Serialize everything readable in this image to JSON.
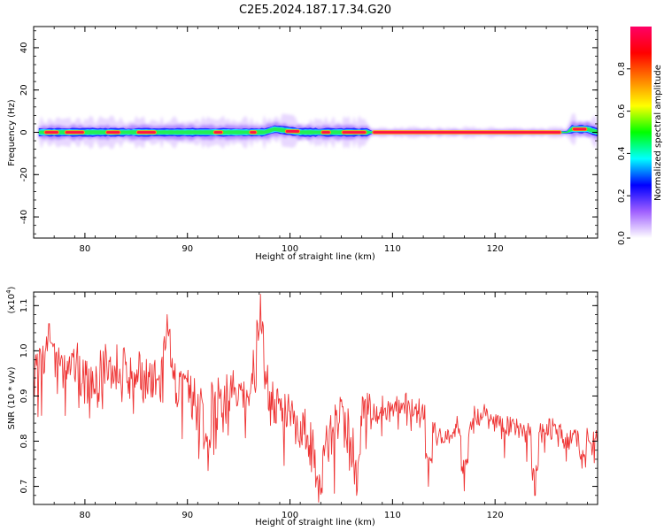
{
  "title": "C2E5.2024.187.17.34.G20",
  "chart_data": [
    {
      "type": "heatmap",
      "xlabel": "Height of straight line (km)",
      "ylabel": "Frequency (Hz)",
      "xlim": [
        75,
        130
      ],
      "ylim": [
        -50,
        50
      ],
      "x_ticks": [
        80,
        90,
        100,
        110,
        120
      ],
      "y_ticks": [
        -40,
        -20,
        0,
        20,
        40
      ],
      "y_tick_labels": [
        "-40",
        "-20",
        "0",
        "20",
        "40"
      ],
      "grid": false,
      "band": {
        "x_range": [
          75.5,
          130
        ],
        "center_frequency": [
          {
            "x": 75.5,
            "f": 0
          },
          {
            "x": 97.5,
            "f": 0
          },
          {
            "x": 98.5,
            "f": 1.5
          },
          {
            "x": 101,
            "f": 0
          },
          {
            "x": 127,
            "f": 0
          },
          {
            "x": 127.5,
            "f": 1.5
          },
          {
            "x": 129,
            "f": 1.5
          },
          {
            "x": 130,
            "f": 0
          }
        ],
        "outer_halfwidth_hz": [
          {
            "x": 75.5,
            "w": 3
          },
          {
            "x": 107.5,
            "w": 3
          },
          {
            "x": 108,
            "w": 1
          },
          {
            "x": 127,
            "w": 1
          },
          {
            "x": 127.5,
            "w": 3
          },
          {
            "x": 130,
            "w": 3
          }
        ],
        "peak_segments": [
          [
            76,
            77.5
          ],
          [
            78,
            80
          ],
          [
            82,
            83.5
          ],
          [
            85,
            87
          ],
          [
            92.5,
            93.5
          ],
          [
            96,
            96.8
          ],
          [
            99.5,
            101
          ],
          [
            103,
            104
          ],
          [
            105,
            107.5
          ],
          [
            108,
            126.5
          ],
          [
            127.5,
            129
          ]
        ]
      },
      "colorbar": {
        "label": "Normalized spectral amplitude",
        "range": [
          0,
          1
        ],
        "ticks": [
          0.0,
          0.2,
          0.4,
          0.6,
          0.8
        ],
        "tick_labels": [
          "0.0",
          "0.2",
          "0.4",
          "0.6",
          "0.8"
        ],
        "colors": [
          "#ffffff",
          "#a060ff",
          "#0000ff",
          "#00ffff",
          "#00ff00",
          "#ffff00",
          "#ff8000",
          "#ff0000",
          "#ff0066"
        ]
      }
    },
    {
      "type": "line",
      "xlabel": "Height of straight line (km)",
      "ylabel": "SNR (10 * v/v)",
      "y_exponent_label": "(x10",
      "y_exponent_power": "4",
      "y_exponent_close": ")",
      "xlim": [
        75,
        130
      ],
      "ylim": [
        0.66,
        1.13
      ],
      "x_ticks": [
        80,
        90,
        100,
        110,
        120
      ],
      "y_ticks": [
        0.7,
        0.8,
        0.9,
        1.0,
        1.1
      ],
      "y_tick_labels": [
        "0.7",
        "0.8",
        "0.9",
        "1.0",
        "1.1"
      ],
      "grid": false,
      "color": "#ee3333",
      "series": [
        {
          "x": [
            75,
            76,
            77,
            78,
            79,
            80,
            81,
            82,
            83,
            84,
            85,
            86,
            87,
            88,
            89,
            90,
            91,
            92,
            93,
            94,
            95,
            96,
            97,
            98,
            99,
            100,
            101,
            102,
            103,
            104,
            105,
            106,
            107,
            108,
            109,
            110,
            111,
            112,
            113,
            114,
            115,
            116,
            117,
            118,
            119,
            120,
            121,
            122,
            123,
            124,
            125,
            126,
            127,
            128,
            129,
            130
          ],
          "y": [
            0.96,
            0.98,
            0.97,
            0.95,
            0.96,
            0.94,
            0.93,
            0.95,
            0.96,
            0.95,
            0.93,
            0.94,
            0.92,
            0.95,
            0.93,
            0.91,
            0.88,
            0.9,
            0.87,
            0.92,
            0.89,
            0.9,
            0.99,
            0.9,
            0.86,
            0.88,
            0.82,
            0.8,
            0.74,
            0.82,
            0.86,
            0.78,
            0.9,
            0.86,
            0.87,
            0.87,
            0.88,
            0.87,
            0.86,
            0.82,
            0.81,
            0.82,
            0.83,
            0.85,
            0.86,
            0.84,
            0.84,
            0.83,
            0.82,
            0.82,
            0.83,
            0.82,
            0.8,
            0.81,
            0.8,
            0.8
          ],
          "peaks": [
            {
              "x": 97.1,
              "y": 1.125
            },
            {
              "x": 88.0,
              "y": 1.08
            },
            {
              "x": 76.5,
              "y": 1.06
            }
          ],
          "dips": [
            {
              "x": 102.8,
              "y": 0.665
            },
            {
              "x": 106.5,
              "y": 0.68
            },
            {
              "x": 123.9,
              "y": 0.68
            },
            {
              "x": 113.5,
              "y": 0.7
            },
            {
              "x": 117,
              "y": 0.69
            },
            {
              "x": 92,
              "y": 0.735
            },
            {
              "x": 128.5,
              "y": 0.74
            }
          ]
        }
      ]
    }
  ]
}
